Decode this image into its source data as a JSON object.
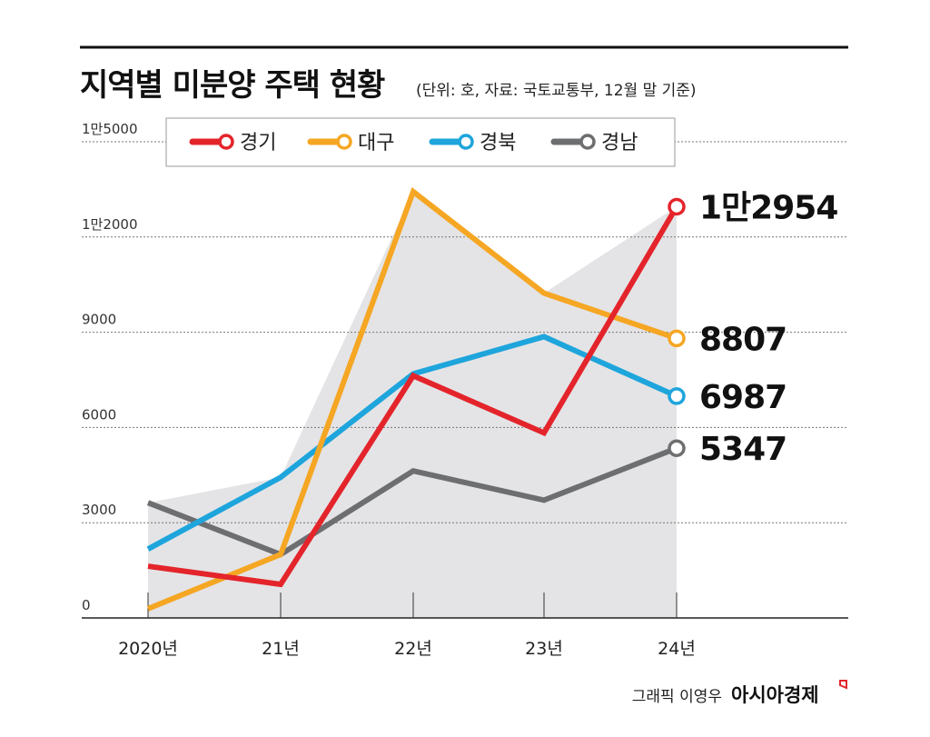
{
  "chart_data": {
    "type": "line",
    "title": "지역별 미분양 주택 현황",
    "subtitle": "(단위: 호, 자료: 국토교통부, 12월 말 기준)",
    "categories": [
      "2020년",
      "21년",
      "22년",
      "23년",
      "24년"
    ],
    "y_ticks": [
      {
        "value": 0,
        "label": "0"
      },
      {
        "value": 3000,
        "label": "3000"
      },
      {
        "value": 6000,
        "label": "6000"
      },
      {
        "value": 9000,
        "label": "9000"
      },
      {
        "value": 12000,
        "label": "1만2000"
      },
      {
        "value": 15000,
        "label": "1만5000"
      }
    ],
    "ylim": [
      0,
      15000
    ],
    "grid": true,
    "legend_position": "top",
    "series": [
      {
        "name": "경기",
        "color": "#e4242b",
        "values": [
          1630,
          1060,
          7630,
          5830,
          12954
        ],
        "end_label": "1만2954"
      },
      {
        "name": "대구",
        "color": "#f5a623",
        "values": [
          290,
          2000,
          13430,
          10230,
          8807
        ],
        "end_label": "8807"
      },
      {
        "name": "경북",
        "color": "#1ea5dc",
        "values": [
          2170,
          4430,
          7690,
          8860,
          6987
        ],
        "end_label": "6987"
      },
      {
        "name": "경남",
        "color": "#6d6e70",
        "values": [
          3630,
          2000,
          4630,
          3710,
          5347
        ],
        "end_label": "5347"
      }
    ]
  },
  "credit": {
    "text": "그래픽 이영우",
    "brand": "아시아경제"
  }
}
